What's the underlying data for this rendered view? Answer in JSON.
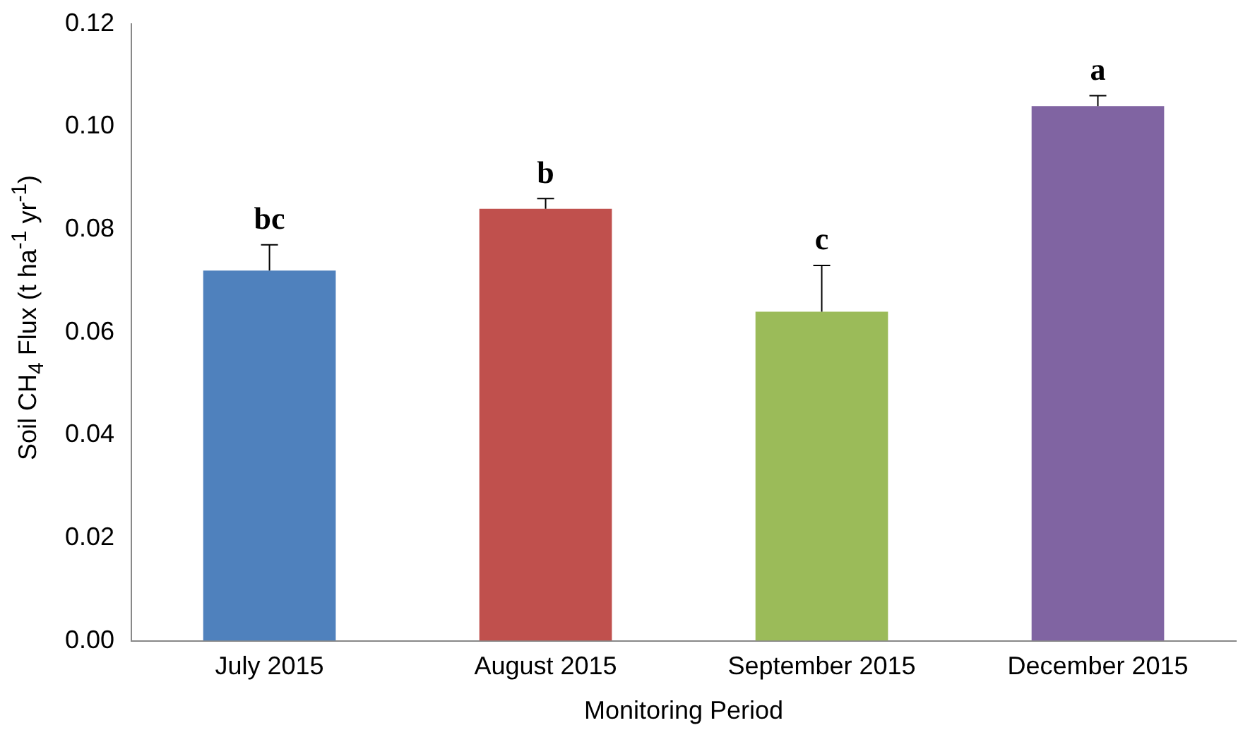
{
  "chart_data": {
    "type": "bar",
    "xlabel": "Monitoring Period",
    "ylabel": "Soil CH$_{4}$ Flux (t ha$^{-1}$ yr$^{-1}$)",
    "categories": [
      "July 2015",
      "August 2015",
      "September 2015",
      "December 2015"
    ],
    "values": [
      0.072,
      0.084,
      0.064,
      0.104
    ],
    "colors": [
      "#4f81bd",
      "#c0504d",
      "#9bbb59",
      "#8064a2"
    ],
    "errors": [
      [
        0.072,
        0.077
      ],
      [
        0.084,
        0.086
      ],
      [
        0.064,
        0.073
      ],
      [
        0.104,
        0.106
      ]
    ],
    "ylim": [
      0,
      0.12
    ],
    "yticks": [
      {
        "value": 0,
        "label": "0.00"
      },
      {
        "value": 0.02,
        "label": "0.02"
      },
      {
        "value": 0.04,
        "label": "0.04"
      },
      {
        "value": 0.06,
        "label": "0.06"
      },
      {
        "value": 0.08,
        "label": "0.08"
      },
      {
        "value": 0.1,
        "label": "0.10"
      },
      {
        "value": 0.12,
        "label": "0.12"
      }
    ],
    "grid": false,
    "legend": false,
    "annotations": [
      {
        "text": "bc",
        "x": "July 2015",
        "y": 0.077
      },
      {
        "text": "b",
        "x": "August 2015",
        "y": 0.086
      },
      {
        "text": "c",
        "x": "September 2015",
        "y": 0.073
      },
      {
        "text": "a",
        "x": "December 2015",
        "y": 0.106
      }
    ]
  }
}
